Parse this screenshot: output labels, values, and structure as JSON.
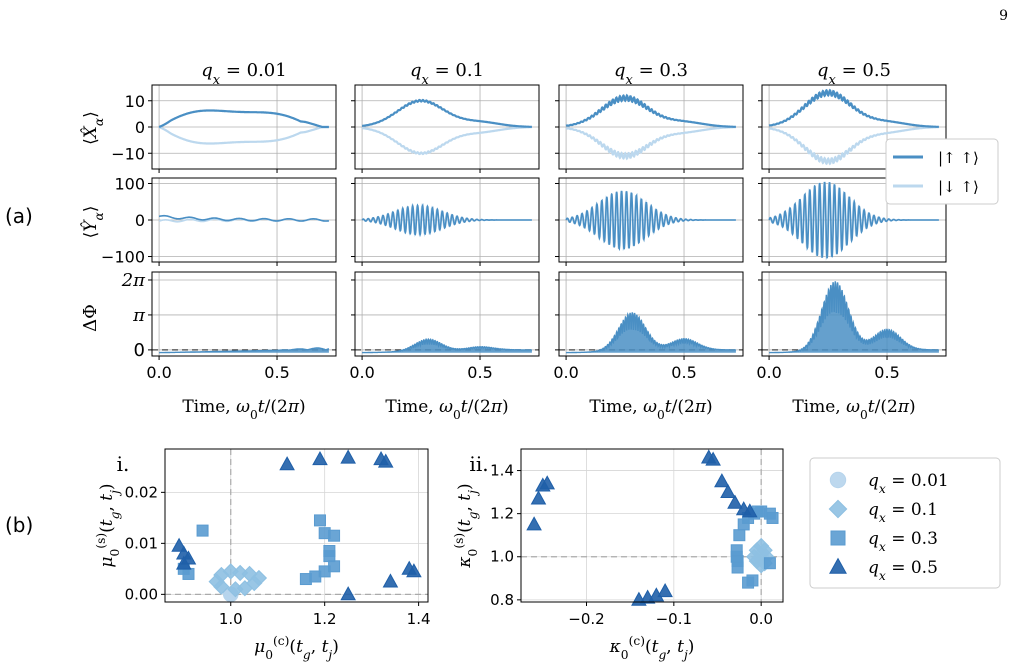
{
  "page_number": "9",
  "panel_labels": {
    "a": "(a)",
    "b": "(b)"
  },
  "chart_data": [
    {
      "type": "line",
      "panel": "(a)",
      "columns": [
        "q_x = 0.01",
        "q_x = 0.1",
        "q_x = 0.3",
        "q_x = 0.5"
      ],
      "column_amplitude_scale": [
        0.0,
        0.38,
        0.8,
        1.0
      ],
      "x_range": [
        0,
        0.72
      ],
      "xlim": [
        -0.03,
        0.75
      ],
      "x_ticks": [
        0,
        0.5
      ],
      "x_tick_labels": [
        "0.0",
        "0.5"
      ],
      "xlabel": "Time, ω₀t/(2π)",
      "rows": [
        {
          "ylabel": "⟨X̂_α⟩",
          "ylim": [
            -16,
            16
          ],
          "y_ticks": [
            10,
            0,
            -10
          ],
          "y_tick_labels": [
            "10",
            "0",
            "−10"
          ],
          "qx_0.01_peak": 7,
          "qx_0.1_peak": 10,
          "qx_0.3_peak": 11,
          "qx_0.5_peak": 13
        },
        {
          "ylabel": "⟨Ŷ_α⟩",
          "ylim": [
            -115,
            115
          ],
          "y_ticks": [
            100,
            0,
            -100
          ],
          "y_tick_labels": [
            "100",
            "0",
            "−100"
          ],
          "qx_0.01_peak": 15,
          "qx_0.1_peak": 40,
          "qx_0.3_peak": 80,
          "qx_0.5_peak": 105
        },
        {
          "ylabel": "ΔΦ",
          "ylim": [
            -0.55,
            7.0
          ],
          "y_ticks": [
            6.283,
            3.1416,
            0
          ],
          "y_tick_labels": [
            "2π",
            "π",
            "0"
          ],
          "dashed_zero_line": true,
          "qx_0.01_peak": 0.2,
          "qx_0.1_peak": 1.1,
          "qx_0.3_peak": 3.5,
          "qx_0.5_peak": 6.3
        }
      ],
      "legend": {
        "placement": "right",
        "entries": [
          "|↑ ↑⟩",
          "|↓ ↑⟩"
        ]
      },
      "colors": {
        "up_up": "#4a8fc4",
        "down_up": "#bcd8ee"
      },
      "grid": true
    },
    {
      "type": "scatter",
      "panel": "i.",
      "xlabel": "μ₀⁽ᶜ⁾(t_g, t_j)",
      "ylabel": "μ₀⁽ˢ⁾(t_g, t_j)",
      "xlim": [
        0.86,
        1.42
      ],
      "ylim": [
        -0.0015,
        0.0285
      ],
      "x_ticks": [
        1.0,
        1.2,
        1.4
      ],
      "x_tick_labels": [
        "1.0",
        "1.2",
        "1.4"
      ],
      "y_ticks": [
        0,
        0.01,
        0.02
      ],
      "y_tick_labels": [
        "0.00",
        "0.01",
        "0.02"
      ],
      "ref_lines": {
        "x": 1.0,
        "y": 0.0
      },
      "series": [
        {
          "name": "q_x = 0.01",
          "marker": "circle",
          "color": "#b6d4ec",
          "points": [
            [
              1.0,
              0.0
            ],
            [
              1.0,
              0.0
            ],
            [
              1.0,
              0.0
            ]
          ]
        },
        {
          "name": "q_x = 0.1",
          "marker": "diamond",
          "color": "#8ec0e2",
          "points": [
            [
              0.98,
              0.0015
            ],
            [
              0.97,
              0.0025
            ],
            [
              0.98,
              0.0038
            ],
            [
              1.0,
              0.0045
            ],
            [
              1.02,
              0.0042
            ],
            [
              1.04,
              0.004
            ],
            [
              1.06,
              0.0032
            ],
            [
              1.05,
              0.0022
            ],
            [
              1.03,
              0.0012
            ],
            [
              1.01,
              0.001
            ]
          ]
        },
        {
          "name": "q_x = 0.3",
          "marker": "square",
          "color": "#5a9bd0",
          "points": [
            [
              0.9,
              0.005
            ],
            [
              0.91,
              0.004
            ],
            [
              0.94,
              0.0125
            ],
            [
              1.16,
              0.003
            ],
            [
              1.18,
              0.0035
            ],
            [
              1.2,
              0.0045
            ],
            [
              1.21,
              0.0085
            ],
            [
              1.2,
              0.012
            ],
            [
              1.22,
              0.0115
            ],
            [
              1.21,
              0.0075
            ],
            [
              1.22,
              0.0055
            ],
            [
              1.19,
              0.0145
            ]
          ]
        },
        {
          "name": "q_x = 0.5",
          "marker": "triangle",
          "color": "#1f5fa8",
          "points": [
            [
              0.89,
              0.0095
            ],
            [
              0.9,
              0.008
            ],
            [
              0.9,
              0.006
            ],
            [
              0.91,
              0.007
            ],
            [
              1.12,
              0.0255
            ],
            [
              1.19,
              0.0265
            ],
            [
              1.25,
              0.0268
            ],
            [
              1.32,
              0.0265
            ],
            [
              1.33,
              0.026
            ],
            [
              1.25,
              0.0
            ],
            [
              1.34,
              0.0025
            ],
            [
              1.38,
              0.005
            ],
            [
              1.39,
              0.0045
            ]
          ]
        }
      ],
      "grid": true
    },
    {
      "type": "scatter",
      "panel": "ii.",
      "xlabel": "κ₀⁽ᶜ⁾(t_g, t_j)",
      "ylabel": "κ₀⁽ˢ⁾(t_g, t_j)",
      "xlim": [
        -0.275,
        0.025
      ],
      "ylim": [
        0.79,
        1.5
      ],
      "x_ticks": [
        -0.2,
        -0.1,
        0.0
      ],
      "x_tick_labels": [
        "−0.2",
        "−0.1",
        "0.0"
      ],
      "y_ticks": [
        0.8,
        1.0,
        1.2,
        1.4
      ],
      "y_tick_labels": [
        "0.8",
        "1.0",
        "1.2",
        "1.4"
      ],
      "ref_lines": {
        "x": 0.0,
        "y": 1.0
      },
      "series": [
        {
          "name": "q_x = 0.01",
          "marker": "circle",
          "color": "#b6d4ec",
          "points": [
            [
              0.0,
              1.0
            ],
            [
              0.0,
              1.0
            ],
            [
              0.0,
              1.0
            ]
          ]
        },
        {
          "name": "q_x = 0.1",
          "marker": "diamond",
          "color": "#8ec0e2",
          "points": [
            [
              -0.005,
              0.98
            ],
            [
              -0.008,
              1.0
            ],
            [
              -0.005,
              1.03
            ],
            [
              0.0,
              1.05
            ],
            [
              0.004,
              1.03
            ],
            [
              0.006,
              1.0
            ],
            [
              0.004,
              0.97
            ],
            [
              0.0,
              0.96
            ]
          ]
        },
        {
          "name": "q_x = 0.3",
          "marker": "square",
          "color": "#5a9bd0",
          "points": [
            [
              -0.025,
              1.1
            ],
            [
              -0.02,
              1.15
            ],
            [
              -0.015,
              1.18
            ],
            [
              -0.008,
              1.2
            ],
            [
              0.0,
              1.21
            ],
            [
              0.01,
              1.2
            ],
            [
              0.013,
              1.18
            ],
            [
              -0.027,
              0.98
            ],
            [
              -0.028,
              1.0
            ],
            [
              -0.028,
              1.03
            ],
            [
              -0.027,
              0.95
            ],
            [
              0.01,
              0.97
            ],
            [
              -0.01,
              0.89
            ],
            [
              -0.015,
              0.88
            ],
            [
              -0.004,
              1.21
            ]
          ]
        },
        {
          "name": "q_x = 0.5",
          "marker": "triangle",
          "color": "#1f5fa8",
          "points": [
            [
              -0.26,
              1.15
            ],
            [
              -0.255,
              1.27
            ],
            [
              -0.25,
              1.33
            ],
            [
              -0.245,
              1.34
            ],
            [
              -0.14,
              0.8
            ],
            [
              -0.13,
              0.81
            ],
            [
              -0.12,
              0.82
            ],
            [
              -0.11,
              0.84
            ],
            [
              -0.06,
              1.46
            ],
            [
              -0.055,
              1.45
            ],
            [
              -0.045,
              1.35
            ],
            [
              -0.038,
              1.3
            ],
            [
              -0.03,
              1.25
            ],
            [
              -0.02,
              1.22
            ],
            [
              -0.013,
              1.21
            ]
          ]
        }
      ],
      "grid": true
    }
  ],
  "legend_b": [
    {
      "label": "q_x = 0.01",
      "marker": "circle",
      "color": "#b6d4ec"
    },
    {
      "label": "q_x = 0.1",
      "marker": "diamond",
      "color": "#8ec0e2"
    },
    {
      "label": "q_x = 0.3",
      "marker": "square",
      "color": "#5a9bd0"
    },
    {
      "label": "q_x = 0.5",
      "marker": "triangle",
      "color": "#1f5fa8"
    }
  ]
}
